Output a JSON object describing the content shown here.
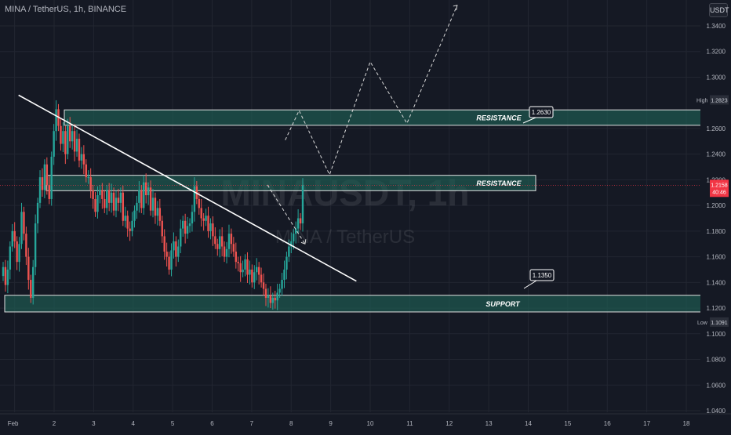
{
  "header": {
    "title": "MINA / TetherUS, 1h, BINANCE",
    "unit": "USDT"
  },
  "watermark": {
    "symbol": "MINAUSDT, 1h",
    "name": "MINA / TetherUS"
  },
  "colors": {
    "background": "#151924",
    "up": "#26a69a",
    "down": "#ef5350",
    "zone_fill": "#1f5f55",
    "zone_border": "#e0e0e0",
    "price_tag": "#f23645",
    "grid": "#222631"
  },
  "chart_data": {
    "type": "candlestick",
    "y_ticks": [
      "1.3400",
      "1.3200",
      "1.3000",
      "1.2600",
      "1.2400",
      "1.2200",
      "1.2000",
      "1.1800",
      "1.1600",
      "1.1400",
      "1.1200",
      "1.1000",
      "1.0800",
      "1.0600",
      "1.0400"
    ],
    "x_ticks": [
      "Feb",
      "2",
      "3",
      "4",
      "5",
      "6",
      "7",
      "8",
      "9",
      "10",
      "11",
      "12",
      "13",
      "14",
      "15",
      "16",
      "17",
      "18"
    ],
    "ylim": [
      1.03,
      1.35
    ],
    "high": {
      "label": "High",
      "value": "1.2823"
    },
    "low": {
      "label": "Low",
      "value": "1.1091"
    },
    "last_price": {
      "value": "1.2158",
      "countdown": "40:46"
    },
    "zones": [
      {
        "label": "RESISTANCE",
        "from": 1.2625,
        "to": 1.2745
      },
      {
        "label": "RESISTANCE",
        "from": 1.2115,
        "to": 1.2235
      },
      {
        "label": "SUPPORT",
        "from": 1.117,
        "to": 1.13
      }
    ],
    "callouts": [
      {
        "text": "1.2630",
        "value": 1.263
      },
      {
        "text": "1.1350",
        "value": 1.135
      }
    ],
    "trendline": {
      "from": {
        "day": 1.1,
        "price": 1.286
      },
      "to": {
        "day": 9.65,
        "price": 1.141
      }
    },
    "projection_path": [
      {
        "day": 7.85,
        "price": 1.251
      },
      {
        "day": 8.2,
        "price": 1.274
      },
      {
        "day": 8.97,
        "price": 1.224
      },
      {
        "day": 10.0,
        "price": 1.312
      },
      {
        "day": 10.93,
        "price": 1.264
      },
      {
        "day": 12.2,
        "price": 1.356
      }
    ],
    "alt_projection": [
      {
        "day": 7.4,
        "price": 1.216
      },
      {
        "day": 8.35,
        "price": 1.17
      }
    ],
    "candles_approx_close": [
      1.152,
      1.138,
      1.15,
      1.168,
      1.18,
      1.172,
      1.156,
      1.17,
      1.195,
      1.178,
      1.16,
      1.142,
      1.128,
      1.152,
      1.186,
      1.202,
      1.222,
      1.212,
      1.232,
      1.216,
      1.205,
      1.238,
      1.258,
      1.275,
      1.262,
      1.248,
      1.258,
      1.24,
      1.262,
      1.25,
      1.258,
      1.242,
      1.252,
      1.235,
      1.24,
      1.232,
      1.222,
      1.222,
      1.212,
      1.205,
      1.195,
      1.208,
      1.212,
      1.205,
      1.198,
      1.212,
      1.202,
      1.21,
      1.196,
      1.206,
      1.202,
      1.21,
      1.188,
      1.192,
      1.182,
      1.18,
      1.188,
      1.196,
      1.202,
      1.212,
      1.198,
      1.218,
      1.208,
      1.214,
      1.196,
      1.206,
      1.192,
      1.198,
      1.188,
      1.176,
      1.164,
      1.16,
      1.15,
      1.165,
      1.172,
      1.16,
      1.168,
      1.182,
      1.188,
      1.178,
      1.184,
      1.186,
      1.195,
      1.215,
      1.205,
      1.198,
      1.19,
      1.188,
      1.192,
      1.18,
      1.186,
      1.176,
      1.17,
      1.166,
      1.176,
      1.168,
      1.16,
      1.166,
      1.178,
      1.17,
      1.164,
      1.156,
      1.155,
      1.148,
      1.15,
      1.158,
      1.146,
      1.15,
      1.14,
      1.148,
      1.152,
      1.146,
      1.14,
      1.135,
      1.128,
      1.13,
      1.124,
      1.128,
      1.126,
      1.132,
      1.135,
      1.142,
      1.15,
      1.16,
      1.168,
      1.172,
      1.178,
      1.182,
      1.19,
      1.186,
      1.2158
    ]
  }
}
